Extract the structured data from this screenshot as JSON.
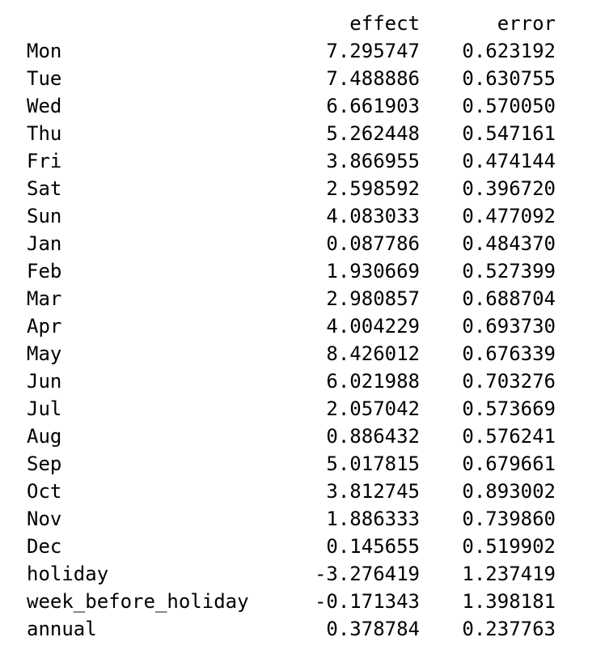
{
  "table": {
    "index_header": "",
    "columns": [
      "effect",
      "error"
    ],
    "rows": [
      {
        "label": "Mon",
        "effect": "7.295747",
        "error": "0.623192"
      },
      {
        "label": "Tue",
        "effect": "7.488886",
        "error": "0.630755"
      },
      {
        "label": "Wed",
        "effect": "6.661903",
        "error": "0.570050"
      },
      {
        "label": "Thu",
        "effect": "5.262448",
        "error": "0.547161"
      },
      {
        "label": "Fri",
        "effect": "3.866955",
        "error": "0.474144"
      },
      {
        "label": "Sat",
        "effect": "2.598592",
        "error": "0.396720"
      },
      {
        "label": "Sun",
        "effect": "4.083033",
        "error": "0.477092"
      },
      {
        "label": "Jan",
        "effect": "0.087786",
        "error": "0.484370"
      },
      {
        "label": "Feb",
        "effect": "1.930669",
        "error": "0.527399"
      },
      {
        "label": "Mar",
        "effect": "2.980857",
        "error": "0.688704"
      },
      {
        "label": "Apr",
        "effect": "4.004229",
        "error": "0.693730"
      },
      {
        "label": "May",
        "effect": "8.426012",
        "error": "0.676339"
      },
      {
        "label": "Jun",
        "effect": "6.021988",
        "error": "0.703276"
      },
      {
        "label": "Jul",
        "effect": "2.057042",
        "error": "0.573669"
      },
      {
        "label": "Aug",
        "effect": "0.886432",
        "error": "0.576241"
      },
      {
        "label": "Sep",
        "effect": "5.017815",
        "error": "0.679661"
      },
      {
        "label": "Oct",
        "effect": "3.812745",
        "error": "0.893002"
      },
      {
        "label": "Nov",
        "effect": "1.886333",
        "error": "0.739860"
      },
      {
        "label": "Dec",
        "effect": "0.145655",
        "error": "0.519902"
      },
      {
        "label": "holiday",
        "effect": "-3.276419",
        "error": "1.237419"
      },
      {
        "label": "week_before_holiday",
        "effect": "-0.171343",
        "error": "1.398181"
      },
      {
        "label": "annual",
        "effect": "0.378784",
        "error": "0.237763"
      }
    ]
  }
}
